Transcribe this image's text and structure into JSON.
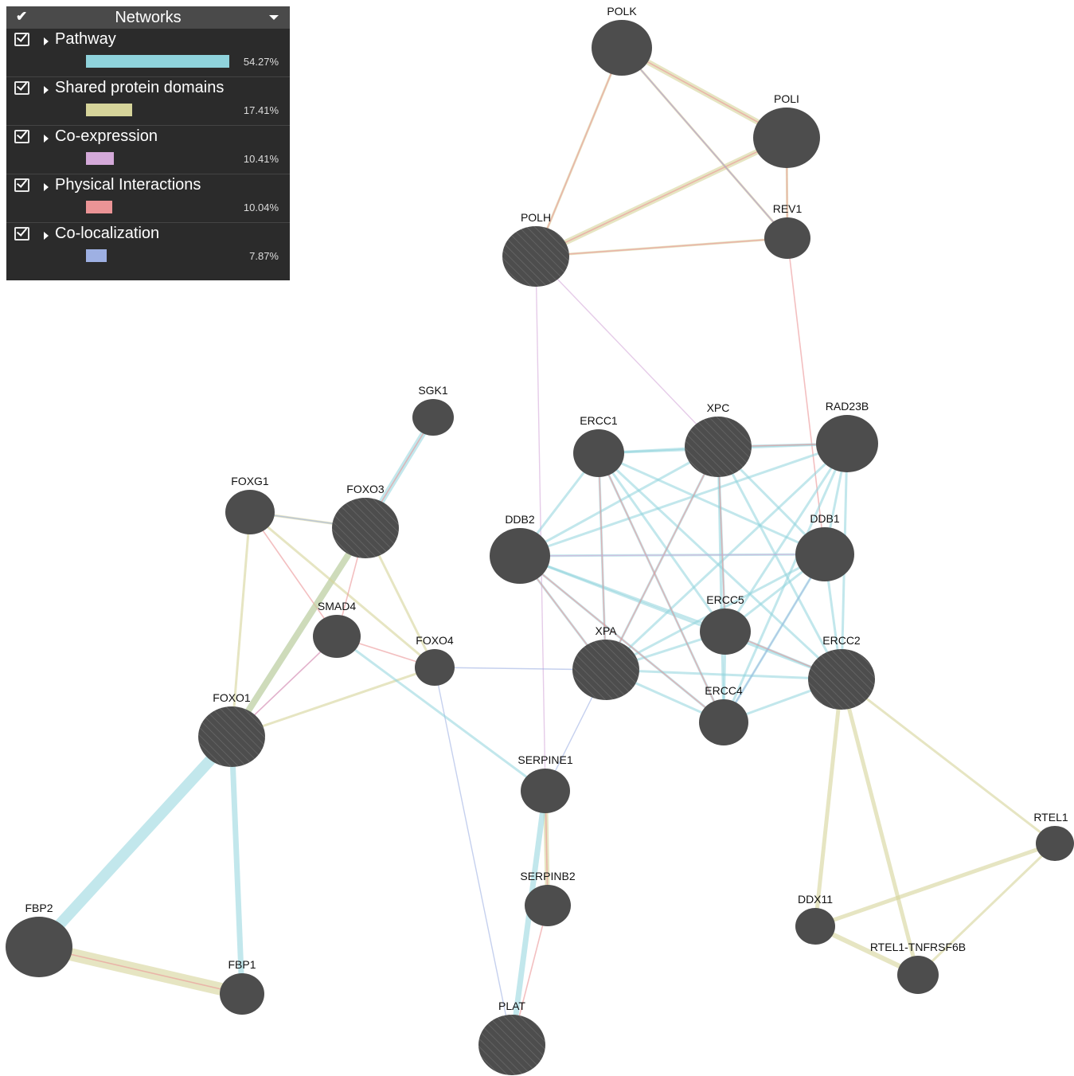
{
  "panel": {
    "title": "Networks",
    "networks": [
      {
        "label": "Pathway",
        "percent": "54.27%",
        "value": 54.27,
        "color": "#8fd3dc"
      },
      {
        "label": "Shared protein domains",
        "percent": "17.41%",
        "value": 17.41,
        "color": "#d6d49a"
      },
      {
        "label": "Co-expression",
        "percent": "10.41%",
        "value": 10.41,
        "color": "#d4a9d9"
      },
      {
        "label": "Physical Interactions",
        "percent": "10.04%",
        "value": 10.04,
        "color": "#eb9496"
      },
      {
        "label": "Co-localization",
        "percent": "7.87%",
        "value": 7.87,
        "color": "#9eb0e3"
      }
    ]
  },
  "graph": {
    "colors": {
      "node": "#4d4d4d",
      "pathway": "#8fd3dc",
      "domains": "#d6d49a",
      "coexp": "#d4a9d9",
      "physical": "#eb9496",
      "coloc": "#9eb0e3"
    },
    "query_genes": [
      "POLH",
      "XPC",
      "FOXO3",
      "XPA",
      "ERCC2",
      "FOXO1",
      "PLAT"
    ],
    "nodes": [
      {
        "id": "POLK",
        "label": "POLK"
      },
      {
        "id": "POLI",
        "label": "POLI"
      },
      {
        "id": "REV1",
        "label": "REV1"
      },
      {
        "id": "POLH",
        "label": "POLH"
      },
      {
        "id": "SGK1",
        "label": "SGK1"
      },
      {
        "id": "ERCC1",
        "label": "ERCC1"
      },
      {
        "id": "XPC",
        "label": "XPC"
      },
      {
        "id": "RAD23B",
        "label": "RAD23B"
      },
      {
        "id": "FOXG1",
        "label": "FOXG1"
      },
      {
        "id": "FOXO3",
        "label": "FOXO3"
      },
      {
        "id": "DDB2",
        "label": "DDB2"
      },
      {
        "id": "DDB1",
        "label": "DDB1"
      },
      {
        "id": "SMAD4",
        "label": "SMAD4"
      },
      {
        "id": "ERCC5",
        "label": "ERCC5"
      },
      {
        "id": "FOXO4",
        "label": "FOXO4"
      },
      {
        "id": "XPA",
        "label": "XPA"
      },
      {
        "id": "ERCC2",
        "label": "ERCC2"
      },
      {
        "id": "FOXO1",
        "label": "FOXO1"
      },
      {
        "id": "ERCC4",
        "label": "ERCC4"
      },
      {
        "id": "SERPINE1",
        "label": "SERPINE1"
      },
      {
        "id": "RTEL1",
        "label": "RTEL1"
      },
      {
        "id": "SERPINB2",
        "label": "SERPINB2"
      },
      {
        "id": "DDX11",
        "label": "DDX11"
      },
      {
        "id": "FBP2",
        "label": "FBP2"
      },
      {
        "id": "RTEL1-TNFRSF6B",
        "label": "RTEL1-TNFRSF6B"
      },
      {
        "id": "FBP1",
        "label": "FBP1"
      },
      {
        "id": "PLAT",
        "label": "PLAT"
      }
    ],
    "edges": [
      {
        "source": "POLK",
        "target": "POLI",
        "type": "domains"
      },
      {
        "source": "POLK",
        "target": "POLH",
        "type": "domains"
      },
      {
        "source": "POLK",
        "target": "REV1",
        "type": "domains"
      },
      {
        "source": "POLI",
        "target": "POLH",
        "type": "domains"
      },
      {
        "source": "POLI",
        "target": "REV1",
        "type": "domains"
      },
      {
        "source": "POLH",
        "target": "REV1",
        "type": "domains"
      },
      {
        "source": "POLK",
        "target": "POLI",
        "type": "physical"
      },
      {
        "source": "POLK",
        "target": "REV1",
        "type": "physical"
      },
      {
        "source": "POLI",
        "target": "REV1",
        "type": "physical"
      },
      {
        "source": "POLH",
        "target": "REV1",
        "type": "physical"
      },
      {
        "source": "POLH",
        "target": "POLI",
        "type": "physical"
      },
      {
        "source": "POLH",
        "target": "POLK",
        "type": "physical"
      },
      {
        "source": "POLK",
        "target": "REV1",
        "type": "coloc"
      },
      {
        "source": "POLH",
        "target": "XPC",
        "type": "coexp"
      },
      {
        "source": "POLH",
        "target": "SERPINE1",
        "type": "coexp"
      },
      {
        "source": "REV1",
        "target": "DDB1",
        "type": "physical"
      },
      {
        "source": "ERCC1",
        "target": "XPC",
        "type": "pathway"
      },
      {
        "source": "ERCC1",
        "target": "RAD23B",
        "type": "pathway"
      },
      {
        "source": "ERCC1",
        "target": "DDB2",
        "type": "pathway"
      },
      {
        "source": "ERCC1",
        "target": "DDB1",
        "type": "pathway"
      },
      {
        "source": "ERCC1",
        "target": "ERCC5",
        "type": "pathway"
      },
      {
        "source": "ERCC1",
        "target": "XPA",
        "type": "pathway"
      },
      {
        "source": "ERCC1",
        "target": "ERCC2",
        "type": "pathway"
      },
      {
        "source": "ERCC1",
        "target": "ERCC4",
        "type": "pathway"
      },
      {
        "source": "XPC",
        "target": "RAD23B",
        "type": "pathway"
      },
      {
        "source": "XPC",
        "target": "DDB2",
        "type": "pathway"
      },
      {
        "source": "XPC",
        "target": "DDB1",
        "type": "pathway"
      },
      {
        "source": "XPC",
        "target": "ERCC5",
        "type": "pathway"
      },
      {
        "source": "XPC",
        "target": "XPA",
        "type": "pathway"
      },
      {
        "source": "XPC",
        "target": "ERCC2",
        "type": "pathway"
      },
      {
        "source": "XPC",
        "target": "ERCC4",
        "type": "pathway"
      },
      {
        "source": "RAD23B",
        "target": "DDB2",
        "type": "pathway"
      },
      {
        "source": "RAD23B",
        "target": "DDB1",
        "type": "pathway"
      },
      {
        "source": "RAD23B",
        "target": "ERCC5",
        "type": "pathway"
      },
      {
        "source": "RAD23B",
        "target": "XPA",
        "type": "pathway"
      },
      {
        "source": "RAD23B",
        "target": "ERCC2",
        "type": "pathway"
      },
      {
        "source": "RAD23B",
        "target": "ERCC4",
        "type": "pathway"
      },
      {
        "source": "DDB2",
        "target": "DDB1",
        "type": "pathway"
      },
      {
        "source": "DDB2",
        "target": "ERCC5",
        "type": "pathway"
      },
      {
        "source": "DDB2",
        "target": "XPA",
        "type": "pathway"
      },
      {
        "source": "DDB2",
        "target": "ERCC2",
        "type": "pathway"
      },
      {
        "source": "DDB2",
        "target": "ERCC4",
        "type": "pathway"
      },
      {
        "source": "DDB1",
        "target": "ERCC5",
        "type": "pathway"
      },
      {
        "source": "DDB1",
        "target": "XPA",
        "type": "pathway"
      },
      {
        "source": "DDB1",
        "target": "ERCC2",
        "type": "pathway"
      },
      {
        "source": "DDB1",
        "target": "ERCC4",
        "type": "pathway"
      },
      {
        "source": "ERCC5",
        "target": "XPA",
        "type": "pathway"
      },
      {
        "source": "ERCC5",
        "target": "ERCC2",
        "type": "pathway"
      },
      {
        "source": "ERCC5",
        "target": "ERCC4",
        "type": "pathway"
      },
      {
        "source": "XPA",
        "target": "ERCC2",
        "type": "pathway"
      },
      {
        "source": "XPA",
        "target": "ERCC4",
        "type": "pathway"
      },
      {
        "source": "ERCC2",
        "target": "ERCC4",
        "type": "pathway"
      },
      {
        "source": "ERCC1",
        "target": "ERCC4",
        "type": "physical"
      },
      {
        "source": "XPC",
        "target": "XPA",
        "type": "physical"
      },
      {
        "source": "XPC",
        "target": "RAD23B",
        "type": "physical"
      },
      {
        "source": "DDB2",
        "target": "XPA",
        "type": "physical"
      },
      {
        "source": "DDB2",
        "target": "ERCC4",
        "type": "physical"
      },
      {
        "source": "XPA",
        "target": "ERCC1",
        "type": "physical"
      },
      {
        "source": "XPC",
        "target": "ERCC5",
        "type": "physical"
      },
      {
        "source": "ERCC5",
        "target": "ERCC2",
        "type": "physical"
      },
      {
        "source": "DDB2",
        "target": "DDB1",
        "type": "coexp"
      },
      {
        "source": "DDB1",
        "target": "ERCC4",
        "type": "coloc"
      },
      {
        "source": "ERCC2",
        "target": "RTEL1",
        "type": "domains"
      },
      {
        "source": "ERCC2",
        "target": "DDX11",
        "type": "domains"
      },
      {
        "source": "ERCC2",
        "target": "RTEL1-TNFRSF6B",
        "type": "domains"
      },
      {
        "source": "RTEL1",
        "target": "DDX11",
        "type": "domains"
      },
      {
        "source": "RTEL1",
        "target": "RTEL1-TNFRSF6B",
        "type": "domains"
      },
      {
        "source": "DDX11",
        "target": "RTEL1-TNFRSF6B",
        "type": "domains"
      },
      {
        "source": "FOXO3",
        "target": "SGK1",
        "type": "pathway"
      },
      {
        "source": "FOXO3",
        "target": "SGK1",
        "type": "physical"
      },
      {
        "source": "FOXO3",
        "target": "FOXO1",
        "type": "pathway"
      },
      {
        "source": "FOXG1",
        "target": "FOXO3",
        "type": "domains"
      },
      {
        "source": "FOXG1",
        "target": "FOXO1",
        "type": "domains"
      },
      {
        "source": "FOXG1",
        "target": "FOXO4",
        "type": "domains"
      },
      {
        "source": "FOXG1",
        "target": "SMAD4",
        "type": "physical"
      },
      {
        "source": "FOXG1",
        "target": "FOXO3",
        "type": "coloc"
      },
      {
        "source": "FOXO3",
        "target": "SMAD4",
        "type": "physical"
      },
      {
        "source": "FOXO3",
        "target": "FOXO4",
        "type": "domains"
      },
      {
        "source": "FOXO3",
        "target": "FOXO1",
        "type": "domains"
      },
      {
        "source": "FOXO1",
        "target": "FOXO4",
        "type": "domains"
      },
      {
        "source": "FOXO1",
        "target": "SMAD4",
        "type": "physical"
      },
      {
        "source": "SMAD4",
        "target": "FOXO4",
        "type": "physical"
      },
      {
        "source": "SMAD4",
        "target": "FOXO1",
        "type": "coexp"
      },
      {
        "source": "FOXO4",
        "target": "XPA",
        "type": "coloc"
      },
      {
        "source": "FOXO4",
        "target": "PLAT",
        "type": "coloc"
      },
      {
        "source": "SMAD4",
        "target": "SERPINE1",
        "type": "pathway"
      },
      {
        "source": "FOXO1",
        "target": "FBP2",
        "type": "pathway"
      },
      {
        "source": "FOXO1",
        "target": "FBP1",
        "type": "pathway"
      },
      {
        "source": "FBP2",
        "target": "FBP1",
        "type": "domains"
      },
      {
        "source": "FBP2",
        "target": "FBP1",
        "type": "physical"
      },
      {
        "source": "SERPINE1",
        "target": "SERPINB2",
        "type": "domains"
      },
      {
        "source": "SERPINE1",
        "target": "PLAT",
        "type": "pathway"
      },
      {
        "source": "SERPINE1",
        "target": "SERPINB2",
        "type": "physical"
      },
      {
        "source": "SERPINB2",
        "target": "PLAT",
        "type": "physical"
      },
      {
        "source": "SERPINE1",
        "target": "XPA",
        "type": "coloc"
      }
    ]
  }
}
